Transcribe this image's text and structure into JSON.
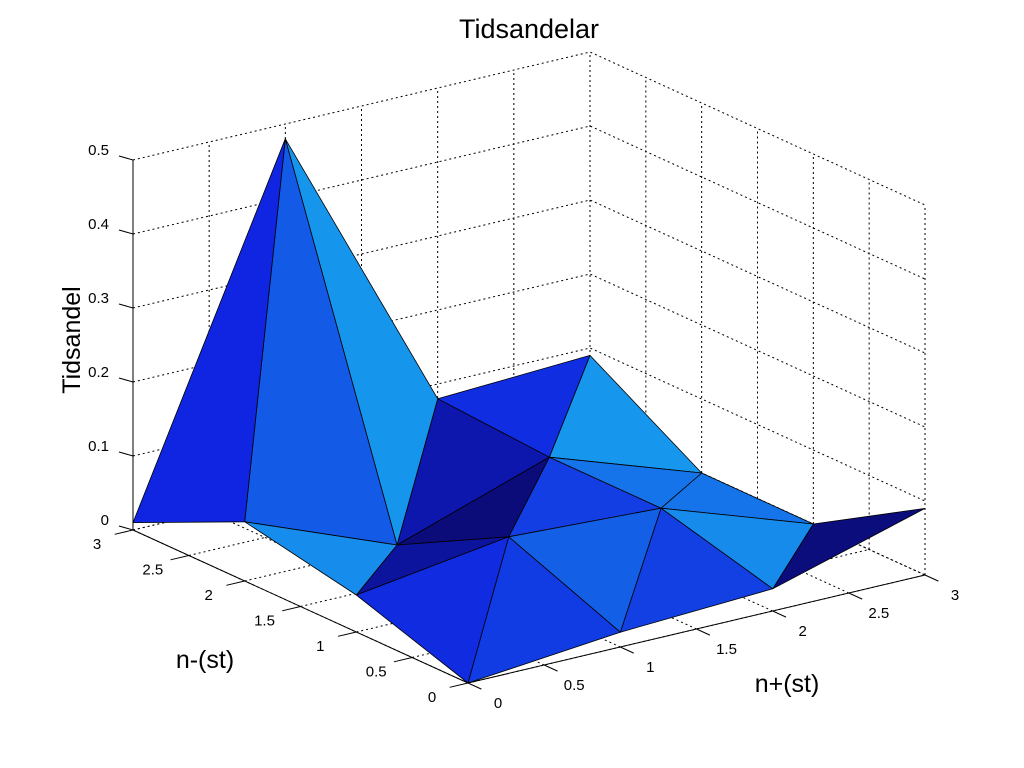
{
  "chart_data": {
    "type": "surface",
    "title": "Tidsandelar",
    "xlabel": "n+(st)",
    "ylabel": "n-(st)",
    "zlabel": "Tidsandel",
    "x": [
      0,
      1,
      2,
      3
    ],
    "y": [
      0,
      1,
      2,
      3
    ],
    "z": [
      [
        0.0,
        0.02,
        0.03,
        0.09
      ],
      [
        0.05,
        0.08,
        0.07,
        0.0
      ],
      [
        0.08,
        0.0,
        0.07,
        0.0
      ],
      [
        0.01,
        0.48,
        0.08,
        0.09
      ]
    ],
    "xlim": [
      0,
      3
    ],
    "ylim": [
      0,
      3
    ],
    "zlim": [
      0,
      0.5
    ],
    "x_ticks": [
      "0",
      "0.5",
      "1",
      "1.5",
      "2",
      "2.5",
      "3"
    ],
    "y_ticks": [
      "0",
      "0.5",
      "1",
      "1.5",
      "2",
      "2.5",
      "3"
    ],
    "z_ticks": [
      "0",
      "0.1",
      "0.2",
      "0.3",
      "0.4",
      "0.5"
    ],
    "grid": true,
    "colors": {
      "low": "#0a0a6e",
      "mid": "#1020e0",
      "high": "#18b4f0"
    }
  }
}
